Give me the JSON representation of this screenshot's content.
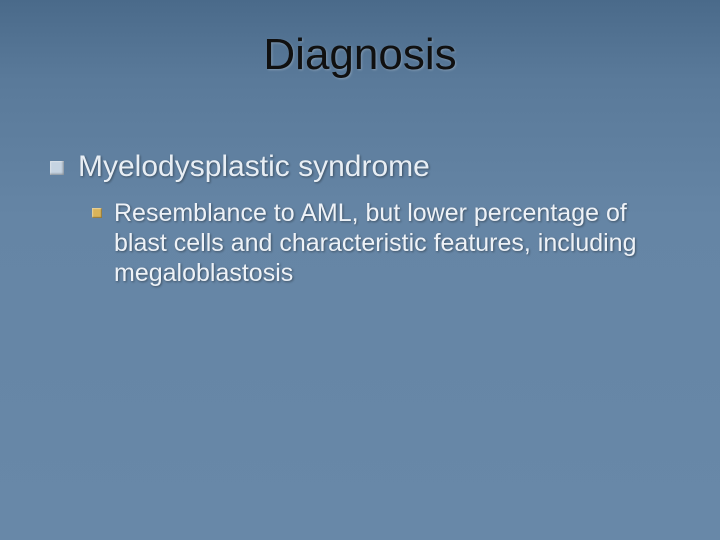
{
  "slide": {
    "title": "Diagnosis",
    "background_gradient": [
      "#4a6a8a",
      "#5a7a9a",
      "#6585a5",
      "#6888a8"
    ],
    "title_color": "#101010",
    "title_fontsize": 44,
    "body_text_color": "#e8eef4",
    "sub_text_color": "#eef2f7",
    "bullet1_color": "#c6d4e2",
    "bullet2_color": "#d9b45a",
    "items": [
      {
        "text": "Myelodysplastic syndrome",
        "fontsize": 30,
        "subitems": [
          {
            "text": "Resemblance to AML, but lower percentage of blast cells and characteristic features, including megaloblastosis",
            "fontsize": 25
          }
        ]
      }
    ]
  }
}
